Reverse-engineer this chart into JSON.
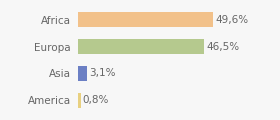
{
  "categories": [
    "Africa",
    "Europa",
    "Asia",
    "America"
  ],
  "values": [
    49.6,
    46.5,
    3.1,
    0.8
  ],
  "labels": [
    "49,6%",
    "46,5%",
    "3,1%",
    "0,8%"
  ],
  "bar_colors": [
    "#f2c18a",
    "#b5c98e",
    "#6b7fc4",
    "#e8d080"
  ],
  "background_color": "#f7f7f7",
  "xlim": [
    0,
    62
  ],
  "bar_height": 0.55,
  "label_fontsize": 7.5,
  "tick_fontsize": 7.5,
  "label_color": "#666666",
  "tick_color": "#666666"
}
